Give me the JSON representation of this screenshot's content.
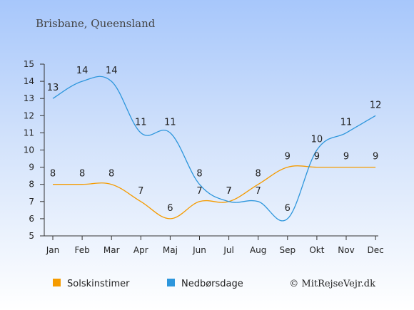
{
  "chart_data": {
    "type": "line",
    "title": "Brisbane, Queensland",
    "categories": [
      "Jan",
      "Feb",
      "Mar",
      "Apr",
      "Maj",
      "Jun",
      "Jul",
      "Aug",
      "Sep",
      "Okt",
      "Nov",
      "Dec"
    ],
    "ylim": [
      5,
      15
    ],
    "yticks": [
      5,
      6,
      7,
      8,
      9,
      10,
      11,
      12,
      13,
      14,
      15
    ],
    "grid": false,
    "legend_position": "bottom-left",
    "series": [
      {
        "name": "Solskinstimer",
        "color": "#f59b00",
        "values": [
          8,
          8,
          8,
          7,
          6,
          7,
          7,
          8,
          9,
          9,
          9,
          9
        ]
      },
      {
        "name": "Nedbørsdage",
        "color": "#2d96dc",
        "values": [
          13,
          14,
          14,
          11,
          11,
          8,
          7,
          7,
          6,
          10,
          11,
          12
        ]
      }
    ]
  },
  "credit": "© MitRejseVejr.dk"
}
